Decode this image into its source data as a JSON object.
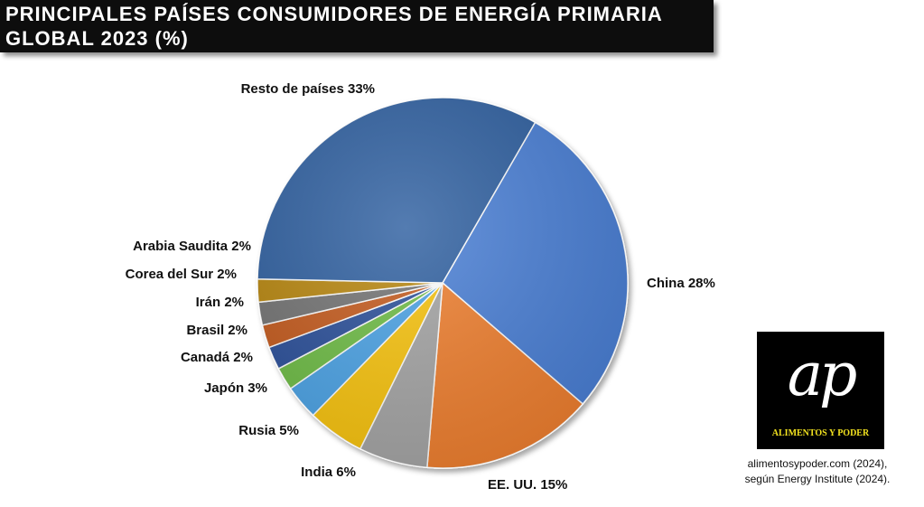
{
  "title": "PRINCIPALES PAÍSES CONSUMIDORES DE ENERGÍA PRIMARIA GLOBAL 2023 (%)",
  "chart_data": {
    "type": "pie",
    "slices": [
      {
        "label": "China 28%",
        "value": 28,
        "color": "#4a7fd6"
      },
      {
        "label": "EE. UU. 15%",
        "value": 15,
        "color": "#f07f2e"
      },
      {
        "label": "India 6%",
        "value": 6,
        "color": "#a5a5a5"
      },
      {
        "label": "Rusia 5%",
        "value": 5,
        "color": "#f9c409"
      },
      {
        "label": "Japón 3%",
        "value": 3,
        "color": "#4ba3e6"
      },
      {
        "label": "Canadá 2%",
        "value": 2,
        "color": "#6ebd45"
      },
      {
        "label": "Brasil 2%",
        "value": 2,
        "color": "#2c4f9a"
      },
      {
        "label": "Irán 2%",
        "value": 2,
        "color": "#c55a1c"
      },
      {
        "label": "Corea del Sur 2%",
        "value": 2,
        "color": "#737373"
      },
      {
        "label": "Arabia Saudita 2%",
        "value": 2,
        "color": "#b8860b"
      },
      {
        "label": "Resto de países 33%",
        "value": 33,
        "color": "#2e5fa0"
      }
    ]
  },
  "logo": {
    "mark": "ap",
    "text": "ALIMENTOS Y PODER"
  },
  "source": {
    "line1": "alimentosypoder.com (2024),",
    "line2": "según Energy Institute (2024)."
  }
}
